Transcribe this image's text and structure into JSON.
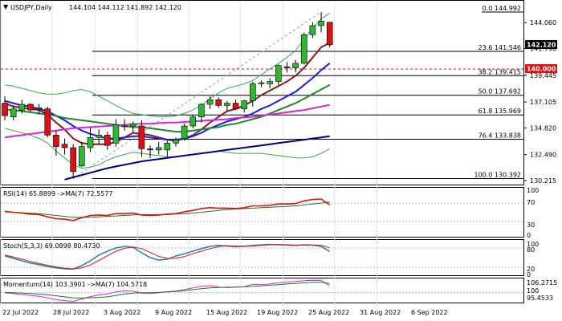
{
  "colors": {
    "up_candle": "#2eb82e",
    "down_candle": "#dd1111",
    "ma_dark_red": "#8b1a1a",
    "ma_blue": "#1a1aee",
    "ma_green": "#1a8a2a",
    "ma_magenta": "#dd22dd",
    "ma_navy": "#000080",
    "bb_green": "#33aa55",
    "rsi_line": "#dd1111",
    "rsi_ma": "#1a7a1a",
    "stoch_main": "#2a8aaa",
    "stoch_signal": "#dd1111",
    "mom_main": "#dd22dd",
    "mom_signal": "#1a7a1a",
    "current_price_bg": "#000000",
    "level_140_bg": "#dd1111"
  },
  "header": {
    "symbol": "USDJPY,Daily",
    "ohlc": "144.104 144.112 141.892 142.120"
  },
  "price_axis": {
    "ticks": [
      "144.060",
      "141.790",
      "139.445",
      "137.105",
      "134.820",
      "132.490",
      "130.215"
    ],
    "current_price": "142.120",
    "level_140": "140.000"
  },
  "fibonacci": [
    {
      "label": "0.0 144.992"
    },
    {
      "label": "23.6 141.546"
    },
    {
      "label": "38.2 139.415"
    },
    {
      "label": "50.0 137.692"
    },
    {
      "label": "61.8 135.969"
    },
    {
      "label": "76.4 133.838"
    },
    {
      "label": "100.0 130.392"
    }
  ],
  "rsi": {
    "label": "RSI(14) 65.8899   ->MA(7) 72.5577",
    "ticks": [
      "100",
      "70",
      "30",
      "0"
    ]
  },
  "stoch": {
    "label": "Stoch(5,3,3) 69.0898 80.4730",
    "ticks": [
      "100",
      "80",
      "20",
      "0"
    ]
  },
  "momentum": {
    "label": "Momentum(14) 103.3901   ->MA(7) 104.5718",
    "ticks": [
      "106.2715",
      "100",
      "95.4533"
    ]
  },
  "date_axis": [
    "22 Jul 2022",
    "28 Jul 2022",
    "3 Aug 2022",
    "9 Aug 2022",
    "15 Aug 2022",
    "19 Aug 2022",
    "25 Aug 2022",
    "31 Aug 2022",
    "6 Sep 2022"
  ],
  "chart_data": {
    "type": "candlestick",
    "symbol": "USDJPY",
    "timeframe": "Daily",
    "candles": [
      {
        "o": 137.0,
        "h": 137.6,
        "l": 135.5,
        "c": 135.9
      },
      {
        "o": 135.8,
        "h": 136.8,
        "l": 135.5,
        "c": 136.5
      },
      {
        "o": 136.4,
        "h": 137.3,
        "l": 136.1,
        "c": 136.9
      },
      {
        "o": 136.9,
        "h": 137.0,
        "l": 136.2,
        "c": 136.4
      },
      {
        "o": 136.5,
        "h": 136.9,
        "l": 136.0,
        "c": 136.6
      },
      {
        "o": 136.5,
        "h": 136.7,
        "l": 134.0,
        "c": 134.2
      },
      {
        "o": 134.2,
        "h": 134.6,
        "l": 132.4,
        "c": 133.2
      },
      {
        "o": 133.4,
        "h": 133.9,
        "l": 132.5,
        "c": 133.1
      },
      {
        "o": 133.1,
        "h": 133.4,
        "l": 130.4,
        "c": 131.0
      },
      {
        "o": 131.5,
        "h": 133.6,
        "l": 131.4,
        "c": 133.2
      },
      {
        "o": 133.1,
        "h": 134.9,
        "l": 132.7,
        "c": 134.0
      },
      {
        "o": 134.0,
        "h": 134.7,
        "l": 133.4,
        "c": 134.2
      },
      {
        "o": 134.2,
        "h": 134.5,
        "l": 132.9,
        "c": 133.3
      },
      {
        "o": 133.5,
        "h": 135.6,
        "l": 133.2,
        "c": 135.1
      },
      {
        "o": 135.0,
        "h": 135.6,
        "l": 134.6,
        "c": 135.0
      },
      {
        "o": 135.0,
        "h": 135.4,
        "l": 134.4,
        "c": 135.2
      },
      {
        "o": 135.0,
        "h": 135.5,
        "l": 132.3,
        "c": 133.0
      },
      {
        "o": 133.0,
        "h": 133.3,
        "l": 132.2,
        "c": 132.9
      },
      {
        "o": 132.9,
        "h": 133.6,
        "l": 132.5,
        "c": 133.1
      },
      {
        "o": 132.9,
        "h": 133.7,
        "l": 132.3,
        "c": 133.5
      },
      {
        "o": 133.5,
        "h": 134.0,
        "l": 133.2,
        "c": 133.8
      },
      {
        "o": 133.9,
        "h": 135.2,
        "l": 133.7,
        "c": 135.0
      },
      {
        "o": 135.0,
        "h": 136.0,
        "l": 134.8,
        "c": 135.8
      },
      {
        "o": 135.8,
        "h": 137.0,
        "l": 135.3,
        "c": 136.9
      },
      {
        "o": 136.9,
        "h": 137.6,
        "l": 136.5,
        "c": 137.3
      },
      {
        "o": 137.3,
        "h": 137.5,
        "l": 136.6,
        "c": 136.8
      },
      {
        "o": 136.8,
        "h": 137.2,
        "l": 136.3,
        "c": 137.0
      },
      {
        "o": 137.0,
        "h": 137.3,
        "l": 136.4,
        "c": 136.5
      },
      {
        "o": 136.5,
        "h": 137.3,
        "l": 136.2,
        "c": 137.2
      },
      {
        "o": 137.2,
        "h": 138.9,
        "l": 136.7,
        "c": 138.7
      },
      {
        "o": 138.7,
        "h": 139.0,
        "l": 138.4,
        "c": 138.8
      },
      {
        "o": 138.7,
        "h": 139.2,
        "l": 138.3,
        "c": 138.9
      },
      {
        "o": 138.9,
        "h": 140.4,
        "l": 138.6,
        "c": 140.3
      },
      {
        "o": 140.2,
        "h": 140.6,
        "l": 139.7,
        "c": 140.1
      },
      {
        "o": 140.1,
        "h": 140.8,
        "l": 139.7,
        "c": 140.5
      },
      {
        "o": 140.5,
        "h": 143.2,
        "l": 140.4,
        "c": 143.0
      },
      {
        "o": 143.0,
        "h": 144.1,
        "l": 142.7,
        "c": 143.8
      },
      {
        "o": 143.8,
        "h": 144.99,
        "l": 143.2,
        "c": 144.2
      },
      {
        "o": 144.1,
        "h": 144.11,
        "l": 141.89,
        "c": 142.12
      }
    ],
    "moving_averages": [
      {
        "color": "#8b1a1a",
        "values": [
          137.0,
          136.7,
          136.6,
          136.5,
          136.4,
          136.0,
          135.3,
          134.7,
          133.9,
          133.5,
          133.4,
          133.4,
          133.4,
          133.6,
          134.0,
          134.4,
          134.3,
          134.2,
          134.0,
          133.8,
          133.7,
          133.9,
          134.2,
          134.7,
          135.3,
          135.8,
          136.3,
          136.5,
          136.8,
          137.2,
          137.7,
          138.1,
          138.5,
          138.9,
          139.4,
          140.1,
          141.0,
          141.9,
          142.3
        ]
      },
      {
        "color": "#1a1aee",
        "values": [
          137.2,
          137.0,
          136.8,
          136.7,
          136.5,
          136.3,
          135.9,
          135.5,
          135.0,
          134.6,
          134.3,
          134.1,
          133.9,
          133.9,
          134.0,
          134.1,
          134.1,
          134.0,
          133.9,
          133.8,
          133.8,
          133.9,
          134.1,
          134.4,
          134.8,
          135.1,
          135.4,
          135.6,
          135.8,
          136.1,
          136.5,
          136.8,
          137.2,
          137.6,
          138.0,
          138.6,
          139.2,
          139.9,
          140.5
        ]
      },
      {
        "color": "#1a8a2a",
        "values": [
          136.4,
          136.4,
          136.3,
          136.2,
          136.1,
          136.0,
          135.9,
          135.7,
          135.6,
          135.5,
          135.4,
          135.3,
          135.2,
          135.1,
          135.0,
          134.9,
          134.9,
          134.8,
          134.7,
          134.6,
          134.5,
          134.5,
          134.6,
          134.7,
          134.8,
          134.9,
          135.1,
          135.2,
          135.4,
          135.6,
          135.8,
          136.1,
          136.4,
          136.7,
          137.0,
          137.4,
          137.8,
          138.2,
          138.6
        ]
      },
      {
        "color": "#dd22dd",
        "values": [
          134.0,
          134.1,
          134.2,
          134.3,
          134.4,
          134.5,
          134.6,
          134.7,
          134.8,
          134.85,
          134.9,
          134.95,
          135.0,
          135.05,
          135.1,
          135.15,
          135.2,
          135.2,
          135.25,
          135.3,
          135.3,
          135.35,
          135.4,
          135.45,
          135.5,
          135.55,
          135.6,
          135.7,
          135.75,
          135.8,
          135.9,
          136.0,
          136.1,
          136.2,
          136.3,
          136.4,
          136.55,
          136.7,
          136.85
        ]
      },
      {
        "color": "#000080",
        "values": [
          null,
          null,
          null,
          null,
          null,
          null,
          null,
          130.3,
          130.5,
          130.7,
          130.9,
          131.1,
          131.3,
          131.45,
          131.6,
          131.75,
          131.9,
          132.0,
          132.1,
          132.2,
          132.3,
          132.4,
          132.5,
          132.6,
          132.7,
          132.8,
          132.9,
          133.0,
          133.1,
          133.2,
          133.3,
          133.4,
          133.5,
          133.6,
          133.7,
          133.8,
          133.9,
          134.0,
          134.1
        ]
      }
    ],
    "bollinger": {
      "color": "#33aa55",
      "upper": [
        138.6,
        138.5,
        138.3,
        138.1,
        137.9,
        137.8,
        137.8,
        137.9,
        138.1,
        138.2,
        138.0,
        137.6,
        137.2,
        136.8,
        136.4,
        136.1,
        136.0,
        135.9,
        135.8,
        135.8,
        135.9,
        136.1,
        136.4,
        136.8,
        137.4,
        137.9,
        138.3,
        138.5,
        138.7,
        139.0,
        139.5,
        140.0,
        140.5,
        141.0,
        141.6,
        142.6,
        143.6,
        144.4,
        144.9
      ],
      "lower": [
        134.8,
        134.6,
        134.4,
        134.2,
        133.9,
        133.5,
        132.8,
        132.2,
        131.6,
        131.3,
        131.4,
        131.6,
        132.0,
        132.3,
        132.5,
        132.7,
        132.6,
        132.5,
        132.4,
        132.3,
        132.3,
        132.4,
        132.5,
        132.6,
        132.7,
        132.8,
        132.7,
        132.6,
        132.6,
        132.6,
        132.6,
        132.5,
        132.4,
        132.3,
        132.2,
        132.2,
        132.3,
        132.6,
        133.0
      ]
    },
    "rsi": {
      "values": [
        52,
        50,
        48,
        46,
        45,
        40,
        36,
        35,
        32,
        38,
        43,
        44,
        43,
        47,
        47,
        48,
        44,
        43,
        44,
        46,
        47,
        51,
        54,
        58,
        60,
        59,
        59,
        58,
        60,
        64,
        64,
        65,
        68,
        68,
        69,
        75,
        78,
        79,
        65.9
      ],
      "ma": [
        51,
        50,
        49,
        48,
        47,
        45,
        43,
        41,
        39,
        39,
        39,
        40,
        41,
        42,
        43,
        44,
        45,
        45,
        45,
        45,
        46,
        47,
        48,
        50,
        52,
        54,
        56,
        57,
        58,
        59,
        60,
        61,
        62,
        63,
        64,
        66,
        68,
        70,
        72.6
      ],
      "range": [
        0,
        100
      ]
    },
    "stochastic": {
      "main": [
        55,
        48,
        40,
        33,
        28,
        22,
        18,
        15,
        14,
        25,
        40,
        58,
        70,
        80,
        85,
        82,
        65,
        50,
        42,
        45,
        55,
        62,
        70,
        78,
        85,
        88,
        86,
        84,
        85,
        88,
        90,
        91,
        90,
        89,
        88,
        90,
        89,
        85,
        69.1
      ],
      "signal": [
        58,
        52,
        45,
        38,
        32,
        26,
        21,
        17,
        15,
        18,
        27,
        41,
        56,
        70,
        79,
        83,
        78,
        66,
        54,
        47,
        48,
        53,
        62,
        70,
        78,
        84,
        87,
        86,
        85,
        86,
        88,
        90,
        91,
        90,
        89,
        89,
        89,
        88,
        80.5
      ],
      "range": [
        0,
        100
      ]
    },
    "momentum": {
      "values": [
        100.0,
        99.5,
        99.0,
        98.6,
        98.2,
        97.4,
        96.5,
        96.0,
        95.6,
        96.8,
        98.0,
        98.8,
        99.3,
        100.4,
        100.9,
        100.7,
        99.8,
        99.6,
        99.9,
        100.5,
        100.8,
        101.6,
        102.4,
        103.2,
        103.5,
        102.8,
        102.5,
        102.7,
        103.0,
        104.2,
        104.0,
        104.3,
        105.0,
        105.2,
        105.6,
        106.0,
        106.2,
        106.1,
        103.4
      ],
      "ma": [
        100.2,
        100.0,
        99.8,
        99.6,
        99.3,
        98.9,
        98.4,
        97.9,
        97.4,
        97.3,
        97.4,
        97.6,
        97.9,
        98.6,
        99.3,
        99.8,
        100.0,
        100.0,
        100.1,
        100.4,
        100.6,
        101.0,
        101.5,
        102.0,
        102.4,
        102.6,
        102.7,
        102.8,
        102.9,
        103.2,
        103.4,
        103.7,
        104.0,
        104.3,
        104.6,
        104.9,
        105.2,
        105.2,
        104.6
      ],
      "range": [
        95.4533,
        106.2715
      ]
    }
  }
}
